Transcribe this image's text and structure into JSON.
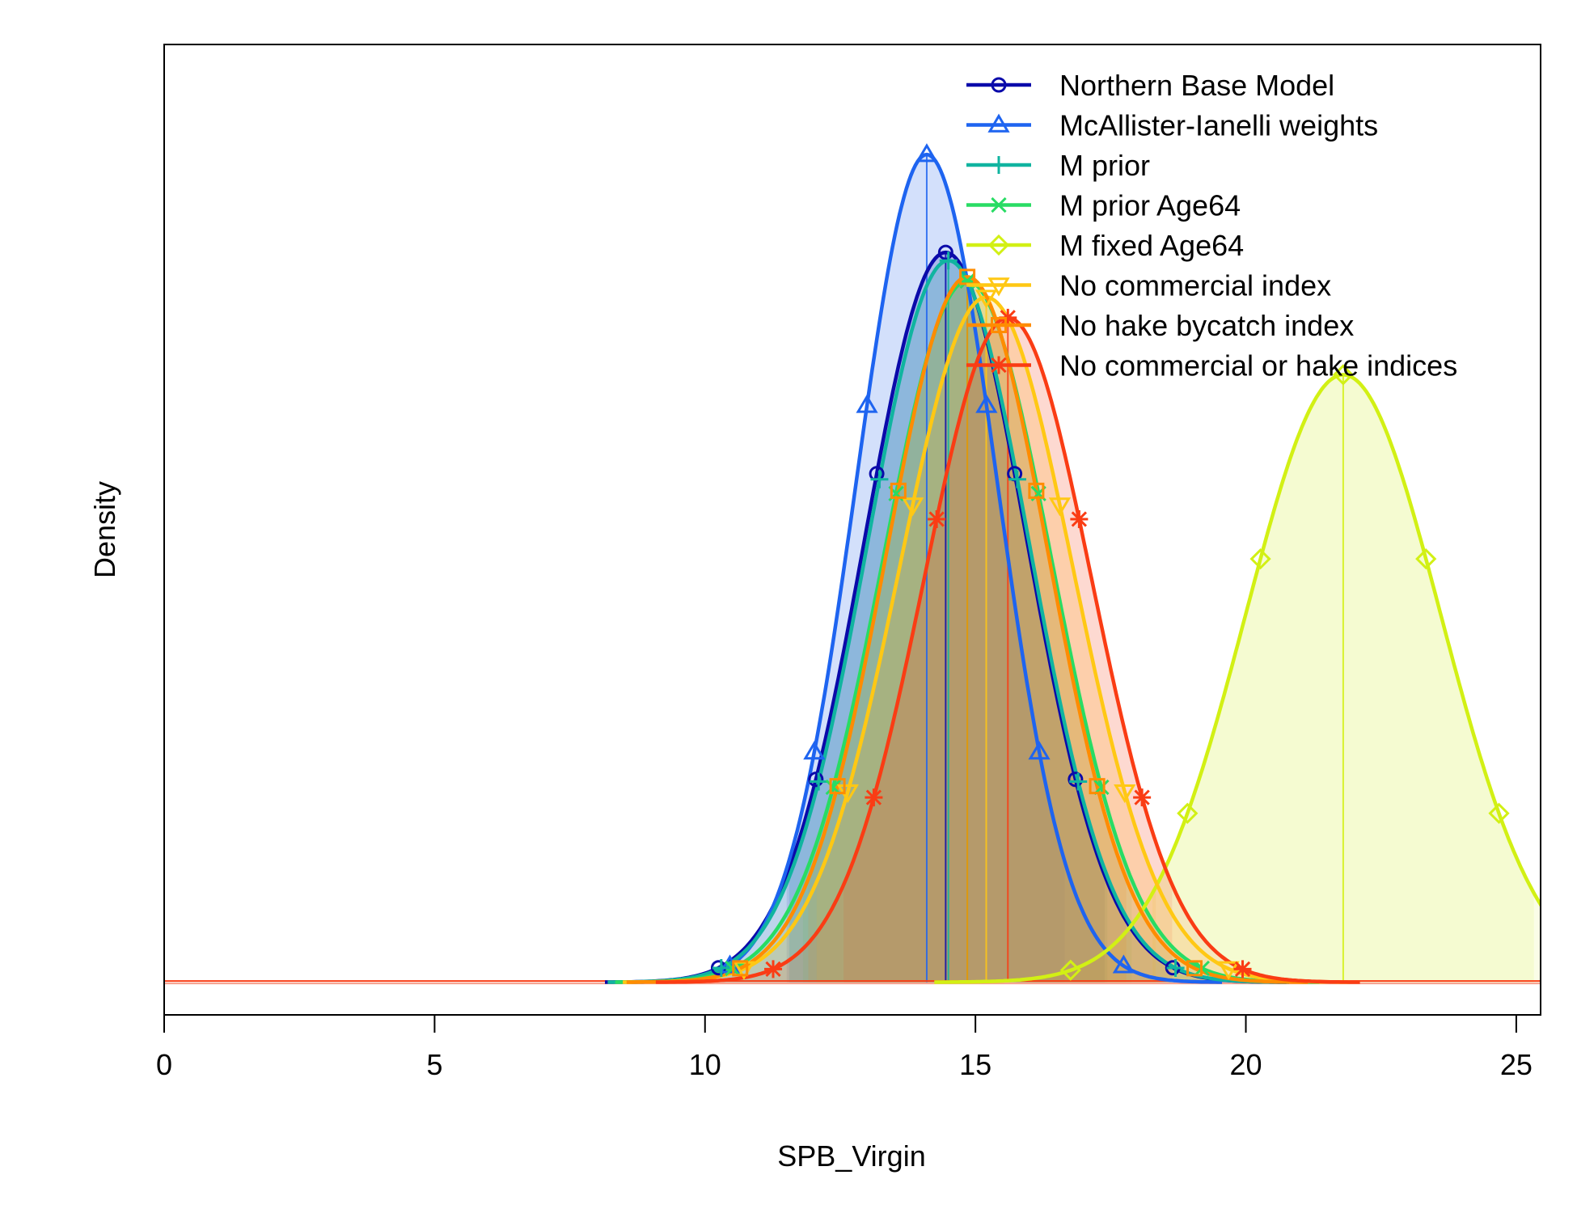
{
  "chart_data": {
    "type": "line",
    "xlabel": "SPB_Virgin",
    "ylabel": "Density",
    "xlim": [
      0,
      25.45
    ],
    "ylim": [
      -0.04,
      1.15
    ],
    "x_ticks": [
      0,
      5,
      10,
      15,
      20,
      25
    ],
    "x_tick_labels": [
      "0",
      "5",
      "10",
      "15",
      "20",
      "25"
    ],
    "y_ticks_shown": false,
    "grid": false,
    "legend_position": "top-right",
    "shaded_density": true,
    "series": [
      {
        "name": "Northern Base Model",
        "color": "#0A0AAA",
        "marker": "circle",
        "mean": 14.45,
        "sd": 1.5,
        "peak": 0.895
      },
      {
        "name": "McAllister-Ianelli weights",
        "color": "#1E64F0",
        "marker": "triangle",
        "mean": 14.1,
        "sd": 1.3,
        "peak": 1.015
      },
      {
        "name": "M prior",
        "color": "#10B4A0",
        "marker": "plus",
        "mean": 14.5,
        "sd": 1.5,
        "peak": 0.885
      },
      {
        "name": "M prior Age64",
        "color": "#28DC64",
        "marker": "cross",
        "mean": 14.85,
        "sd": 1.55,
        "peak": 0.86
      },
      {
        "name": "M fixed Age64",
        "color": "#D2F014",
        "marker": "diamond",
        "mean": 21.8,
        "sd": 1.8,
        "peak": 0.745
      },
      {
        "name": "No commercial index",
        "color": "#FFC814",
        "marker": "triangle-down",
        "mean": 15.2,
        "sd": 1.6,
        "peak": 0.84
      },
      {
        "name": "No hake bycatch index",
        "color": "#FF8C00",
        "marker": "square",
        "mean": 14.85,
        "sd": 1.5,
        "peak": 0.865
      },
      {
        "name": "No commercial or hake indices",
        "color": "#FA3C14",
        "marker": "asterisk",
        "mean": 15.6,
        "sd": 1.55,
        "peak": 0.815
      }
    ]
  }
}
